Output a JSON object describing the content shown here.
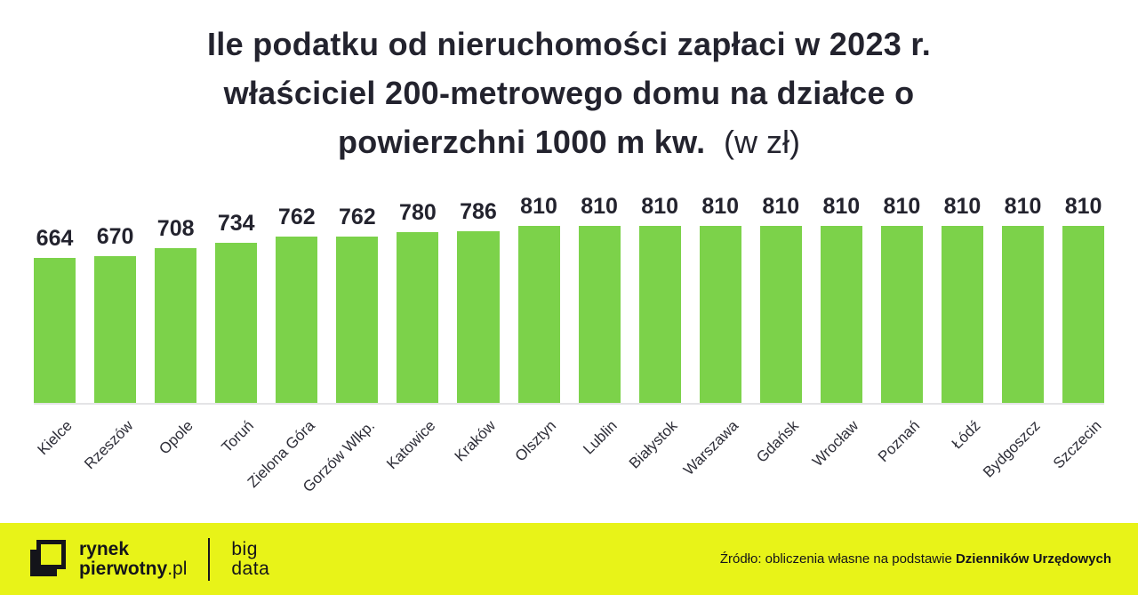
{
  "title": {
    "lines": [
      "Ile podatku od nieruchomości zapłaci w 2023 r.",
      "właściciel 200-metrowego domu na działce o"
    ],
    "line3_bold": "powierzchni 1000 m kw.",
    "line3_light": "(w zł)"
  },
  "chart_data": {
    "type": "bar",
    "title": "Ile podatku od nieruchomości zapłaci w 2023 r. właściciel 200-metrowego domu na działce o powierzchni 1000 m kw. (w zł)",
    "categories": [
      "Kielce",
      "Rzeszów",
      "Opole",
      "Toruń",
      "Zielona Góra",
      "Gorzów Wlkp.",
      "Katowice",
      "Kraków",
      "Olsztyn",
      "Lublin",
      "Białystok",
      "Warszawa",
      "Gdańsk",
      "Wrocław",
      "Poznań",
      "Łódź",
      "Bydgoszcz",
      "Szczecin"
    ],
    "values": [
      664,
      670,
      708,
      734,
      762,
      762,
      780,
      786,
      810,
      810,
      810,
      810,
      810,
      810,
      810,
      810,
      810,
      810
    ],
    "unit": "zł",
    "xlabel": "",
    "ylabel": "",
    "ylim": [
      0,
      810
    ],
    "grid": false,
    "legend": false,
    "value_labels": true,
    "bar_color": "#7cd24a"
  },
  "footer": {
    "brand": {
      "line1": "rynek",
      "line2_bold": "pierwotny",
      "line2_suffix": ".pl",
      "sub_line1": "big",
      "sub_line2": "data"
    },
    "source": {
      "prefix": "Źródło: obliczenia własne na podstawie ",
      "bold": "Dzienników Urzędowych"
    }
  },
  "colors": {
    "bar_green": "#7cd24a",
    "footer_yellow": "#e8f318",
    "text_dark": "#23232e",
    "baseline_gray": "#e4e4e6"
  }
}
